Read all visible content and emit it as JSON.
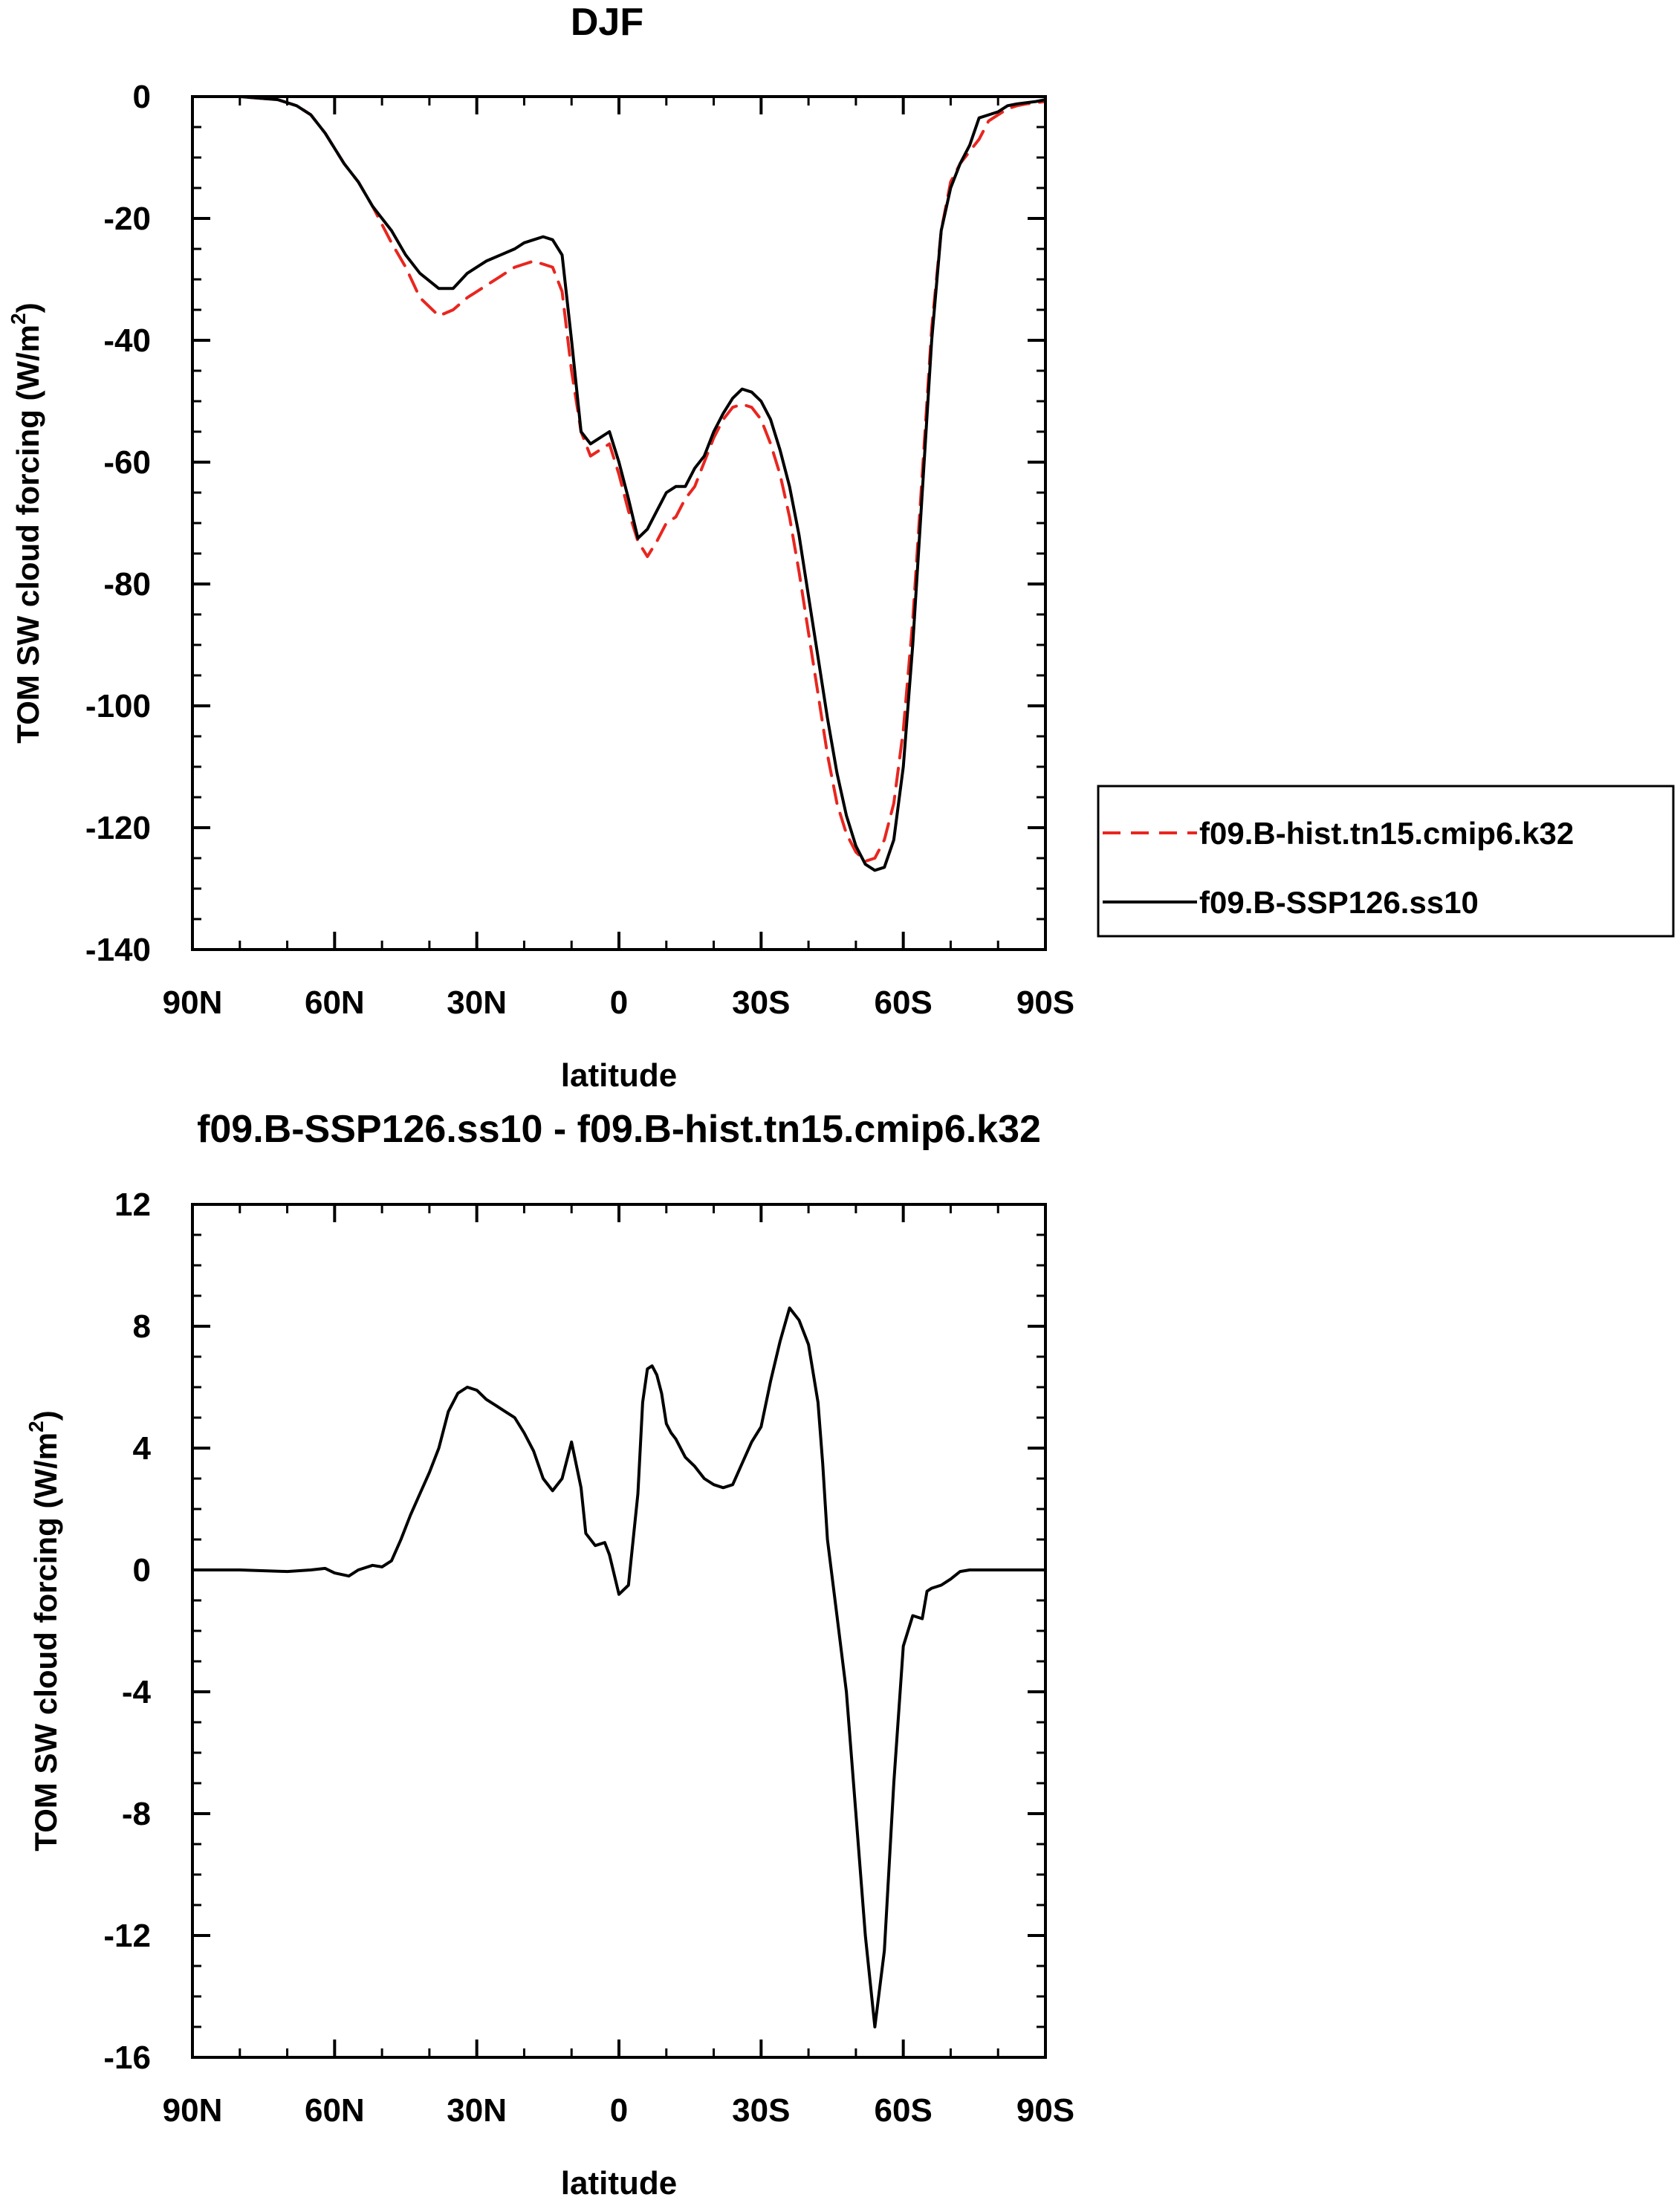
{
  "chart_data": [
    {
      "type": "line",
      "title": "DJF",
      "xlabel": "latitude",
      "ylabel": "TOM SW cloud forcing (W/m",
      "ylabel_sup": "2",
      "ylabel_close": ")",
      "xlim": [
        90,
        -90
      ],
      "ylim": [
        -140,
        0
      ],
      "x_ticks": [
        90,
        60,
        30,
        0,
        -30,
        -60,
        -90
      ],
      "x_tick_labels": [
        "90N",
        "60N",
        "30N",
        "0",
        "30S",
        "60S",
        "90S"
      ],
      "y_ticks": [
        0,
        -20,
        -40,
        -60,
        -80,
        -100,
        -120,
        -140
      ],
      "y_tick_labels": [
        "0",
        "-20",
        "-40",
        "-60",
        "-80",
        "-100",
        "-120",
        "-140"
      ],
      "legend": {
        "placement": "right",
        "entries": [
          "f09.B-hist.tn15.cmip6.k32",
          "f09.B-SSP126.ss10"
        ]
      },
      "series": [
        {
          "name": "f09.B-hist.tn15.cmip6.k32",
          "color": "#e8261f",
          "dash": "dashed",
          "x": [
            90,
            80,
            72,
            68,
            65,
            62,
            58,
            55,
            52,
            48,
            45,
            42,
            38,
            35,
            32,
            30,
            28,
            25,
            22,
            20,
            18,
            16,
            14,
            12,
            10,
            8,
            6,
            4,
            2,
            0,
            -2,
            -4,
            -6,
            -8,
            -10,
            -12,
            -14,
            -16,
            -18,
            -20,
            -22,
            -24,
            -26,
            -28,
            -30,
            -32,
            -34,
            -36,
            -38,
            -40,
            -42,
            -44,
            -46,
            -48,
            -50,
            -52,
            -54,
            -56,
            -58,
            -60,
            -62,
            -64,
            -66,
            -68,
            -70,
            -72,
            -74,
            -76,
            -78,
            -80,
            -82,
            -84,
            -86,
            -88,
            -90
          ],
          "y": [
            0,
            0,
            -0.5,
            -1.5,
            -3,
            -6,
            -11,
            -14,
            -18,
            -24,
            -28,
            -33,
            -36,
            -35,
            -33,
            -32,
            -31,
            -29.5,
            -28,
            -27.5,
            -27,
            -27.5,
            -28,
            -32,
            -45,
            -55,
            -59,
            -58,
            -57,
            -62,
            -68,
            -73,
            -75.5,
            -73,
            -70,
            -69,
            -66,
            -64,
            -60,
            -56,
            -53,
            -51,
            -50.5,
            -51,
            -53,
            -57,
            -62,
            -69,
            -78,
            -88,
            -98,
            -108,
            -116,
            -121,
            -124,
            -125.5,
            -125,
            -122,
            -116,
            -104,
            -86,
            -62,
            -38,
            -22,
            -14,
            -11,
            -9,
            -7,
            -4,
            -3,
            -2,
            -1.5,
            -1.2,
            -1,
            -0.8
          ]
        },
        {
          "name": "f09.B-SSP126.ss10",
          "color": "#000000",
          "dash": "solid",
          "x": [
            90,
            80,
            72,
            68,
            65,
            62,
            58,
            55,
            52,
            48,
            45,
            42,
            38,
            35,
            32,
            30,
            28,
            25,
            22,
            20,
            18,
            16,
            14,
            12,
            10,
            8,
            6,
            4,
            2,
            0,
            -2,
            -4,
            -6,
            -8,
            -10,
            -12,
            -14,
            -16,
            -18,
            -20,
            -22,
            -24,
            -26,
            -28,
            -30,
            -32,
            -34,
            -36,
            -38,
            -40,
            -42,
            -44,
            -46,
            -48,
            -50,
            -52,
            -54,
            -56,
            -58,
            -60,
            -62,
            -64,
            -66,
            -68,
            -70,
            -72,
            -74,
            -76,
            -78,
            -80,
            -82,
            -84,
            -86,
            -88,
            -90
          ],
          "y": [
            0,
            0,
            -0.5,
            -1.5,
            -3,
            -6,
            -11,
            -14,
            -18,
            -22,
            -26,
            -29,
            -31.5,
            -31.5,
            -29,
            -28,
            -27,
            -26,
            -25,
            -24,
            -23.5,
            -23,
            -23.5,
            -26,
            -40,
            -55,
            -57,
            -56,
            -55,
            -60,
            -66,
            -72.5,
            -71,
            -68,
            -65,
            -64,
            -64,
            -61,
            -59,
            -55,
            -52,
            -49.5,
            -48,
            -48.5,
            -50,
            -53,
            -58,
            -64,
            -72,
            -82,
            -92,
            -102,
            -111,
            -118,
            -123,
            -126,
            -127,
            -126.5,
            -122,
            -110,
            -90,
            -65,
            -40,
            -22,
            -15,
            -11,
            -8,
            -3.5,
            -3,
            -2.5,
            -1.5,
            -1.2,
            -1,
            -0.8,
            -0.5
          ]
        }
      ]
    },
    {
      "type": "line",
      "title": "f09.B-SSP126.ss10 - f09.B-hist.tn15.cmip6.k32",
      "xlabel": "latitude",
      "ylabel": "TOM SW cloud forcing (W/m",
      "ylabel_sup": "2",
      "ylabel_close": ")",
      "xlim": [
        90,
        -90
      ],
      "ylim": [
        -16,
        12
      ],
      "x_ticks": [
        90,
        60,
        30,
        0,
        -30,
        -60,
        -90
      ],
      "x_tick_labels": [
        "90N",
        "60N",
        "30N",
        "0",
        "30S",
        "60S",
        "90S"
      ],
      "y_ticks": [
        12,
        8,
        4,
        0,
        -4,
        -8,
        -12,
        -16
      ],
      "y_tick_labels": [
        "12",
        "8",
        "4",
        "0",
        "-4",
        "-8",
        "-12",
        "-16"
      ],
      "series": [
        {
          "name": "f09.B-SSP126.ss10 - f09.B-hist.tn15.cmip6.k32",
          "color": "#000000",
          "dash": "solid",
          "x": [
            90,
            80,
            70,
            65,
            62,
            60,
            57,
            55,
            52,
            50,
            48,
            46,
            44,
            42,
            40,
            38,
            36,
            34,
            32,
            30,
            28,
            26,
            24,
            22,
            20,
            18,
            16,
            14,
            12,
            10,
            8,
            7,
            5,
            3,
            2,
            0,
            -2,
            -4,
            -5,
            -6,
            -7,
            -8,
            -9,
            -10,
            -11,
            -12,
            -14,
            -16,
            -18,
            -20,
            -22,
            -24,
            -26,
            -28,
            -30,
            -32,
            -34,
            -36,
            -38,
            -40,
            -42,
            -43,
            -44,
            -46,
            -48,
            -50,
            -52,
            -54,
            -56,
            -58,
            -60,
            -62,
            -64,
            -65,
            -66,
            -68,
            -70,
            -72,
            -74,
            -76,
            -78,
            -80,
            -82,
            -84,
            -86,
            -88,
            -90
          ],
          "y": [
            0,
            0,
            -0.05,
            0,
            0.05,
            -0.1,
            -0.2,
            0,
            0.15,
            0.1,
            0.3,
            1,
            1.8,
            2.5,
            3.2,
            4,
            5.2,
            5.8,
            6,
            5.9,
            5.6,
            5.4,
            5.2,
            5,
            4.5,
            3.9,
            3,
            2.6,
            3,
            4.2,
            2.7,
            1.2,
            0.8,
            0.9,
            0.5,
            -0.8,
            -0.5,
            2.5,
            5.5,
            6.6,
            6.7,
            6.4,
            5.8,
            4.8,
            4.5,
            4.3,
            3.7,
            3.4,
            3.0,
            2.8,
            2.7,
            2.8,
            3.5,
            4.2,
            4.7,
            6.2,
            7.5,
            8.6,
            8.2,
            7.4,
            5.5,
            3.5,
            1,
            -1.5,
            -4,
            -8,
            -12,
            -15,
            -12.5,
            -7,
            -2.5,
            -1.5,
            -1.6,
            -0.7,
            -0.6,
            -0.5,
            -0.3,
            -0.05,
            0,
            0,
            0,
            0,
            0,
            0,
            0,
            0,
            0
          ]
        }
      ]
    }
  ]
}
